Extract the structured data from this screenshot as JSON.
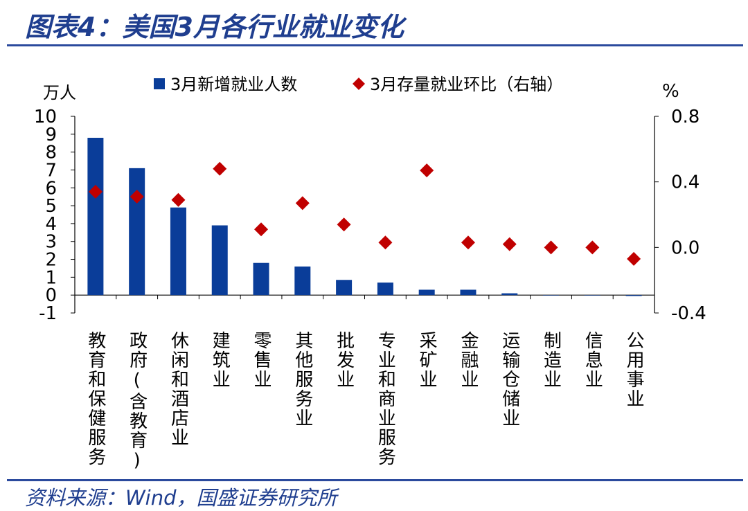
{
  "title": "图表4：美国3月各行业就业变化",
  "source": "资料来源：Wind，国盛证券研究所",
  "colors": {
    "bar": "#0a3d99",
    "diamond": "#c00000",
    "title": "#1f3e8f",
    "rule": "#2b4a9d"
  },
  "chart_data": {
    "type": "bar",
    "categories": [
      "教育和保健服务",
      "政府(含教育)",
      "休闲和酒店业",
      "建筑业",
      "零售业",
      "其他服务业",
      "批发业",
      "专业和商业服务",
      "采矿业",
      "金融业",
      "运输仓储业",
      "制造业",
      "信息业",
      "公用事业"
    ],
    "series": [
      {
        "name": "3月新增就业人数",
        "type": "bar",
        "axis": "left",
        "values": [
          8.8,
          7.1,
          4.9,
          3.9,
          1.8,
          1.6,
          0.85,
          0.7,
          0.3,
          0.3,
          0.1,
          0.0,
          0.0,
          -0.05
        ]
      },
      {
        "name": "3月存量就业环比（右轴）",
        "type": "scatter",
        "axis": "right",
        "values": [
          0.34,
          0.31,
          0.29,
          0.48,
          0.11,
          0.27,
          0.14,
          0.03,
          0.47,
          0.03,
          0.02,
          0.0,
          0.0,
          -0.07
        ]
      }
    ],
    "y_left": {
      "unit": "万人",
      "min": -1,
      "max": 10,
      "ticks": [
        "-1",
        "0",
        "1",
        "2",
        "3",
        "4",
        "5",
        "6",
        "7",
        "8",
        "9",
        "10"
      ]
    },
    "y_right": {
      "unit": "%",
      "min": -0.4,
      "max": 0.8,
      "ticks": [
        "-0.4",
        "0.0",
        "0.4",
        "0.8"
      ]
    },
    "legend": [
      "3月新增就业人数",
      "3月存量就业环比（右轴）"
    ]
  }
}
